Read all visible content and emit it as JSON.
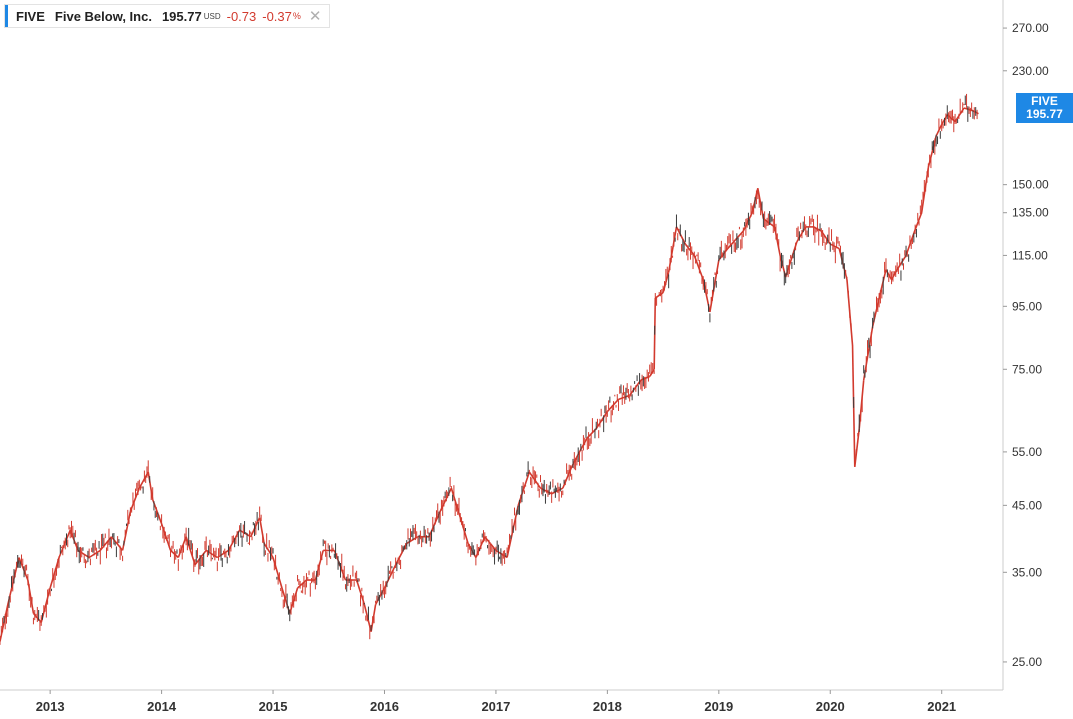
{
  "legend": {
    "symbol": "FIVE",
    "name": "Five Below, Inc.",
    "price": "195.77",
    "currency": "USD",
    "change": "-0.73",
    "change_percent": "-0.37",
    "percent_sign": "%",
    "close_icon": "close-icon",
    "close_glyph": "✕"
  },
  "price_tag": {
    "symbol": "FIVE",
    "price": "195.77"
  },
  "colors": {
    "accent": "#1e88e5",
    "down": "#d23a2e",
    "up": "#3a3a3a",
    "negative_text": "#d23a2e",
    "axis": "#cccccc"
  },
  "chart_data": {
    "type": "line",
    "title": "FIVE Five Below, Inc.",
    "scale": "log",
    "ylim": [
      22.5,
      300
    ],
    "y_ticks": [
      {
        "value": 25,
        "label": "25.00"
      },
      {
        "value": 35,
        "label": "35.00"
      },
      {
        "value": 45,
        "label": "45.00"
      },
      {
        "value": 55,
        "label": "55.00"
      },
      {
        "value": 75,
        "label": "75.00"
      },
      {
        "value": 95,
        "label": "95.00"
      },
      {
        "value": 115,
        "label": "115.00"
      },
      {
        "value": 135,
        "label": "135.00"
      },
      {
        "value": 150,
        "label": "150.00"
      },
      {
        "value": 230,
        "label": "230.00"
      },
      {
        "value": 270,
        "label": "270.00"
      }
    ],
    "xlim": [
      2012.55,
      2021.55
    ],
    "x_ticks": [
      {
        "value": 2013,
        "label": "2013"
      },
      {
        "value": 2014,
        "label": "2014"
      },
      {
        "value": 2015,
        "label": "2015"
      },
      {
        "value": 2016,
        "label": "2016"
      },
      {
        "value": 2017,
        "label": "2017"
      },
      {
        "value": 2018,
        "label": "2018"
      },
      {
        "value": 2019,
        "label": "2019"
      },
      {
        "value": 2020,
        "label": "2020"
      },
      {
        "value": 2021,
        "label": "2021"
      }
    ],
    "series": [
      {
        "name": "FIVE",
        "points": [
          [
            2012.55,
            27
          ],
          [
            2012.62,
            31
          ],
          [
            2012.72,
            37
          ],
          [
            2012.8,
            34
          ],
          [
            2012.85,
            30
          ],
          [
            2012.92,
            29
          ],
          [
            2013.0,
            33
          ],
          [
            2013.08,
            37
          ],
          [
            2013.18,
            41
          ],
          [
            2013.25,
            38
          ],
          [
            2013.35,
            37
          ],
          [
            2013.45,
            38
          ],
          [
            2013.55,
            40
          ],
          [
            2013.65,
            38
          ],
          [
            2013.72,
            44
          ],
          [
            2013.8,
            48
          ],
          [
            2013.88,
            51
          ],
          [
            2013.92,
            46
          ],
          [
            2014.0,
            42
          ],
          [
            2014.08,
            38
          ],
          [
            2014.15,
            37
          ],
          [
            2014.22,
            40
          ],
          [
            2014.3,
            36
          ],
          [
            2014.4,
            38
          ],
          [
            2014.5,
            37
          ],
          [
            2014.6,
            38
          ],
          [
            2014.7,
            41
          ],
          [
            2014.8,
            40
          ],
          [
            2014.88,
            43
          ],
          [
            2014.92,
            39
          ],
          [
            2015.0,
            37
          ],
          [
            2015.08,
            33
          ],
          [
            2015.15,
            30
          ],
          [
            2015.22,
            33
          ],
          [
            2015.3,
            34
          ],
          [
            2015.38,
            34
          ],
          [
            2015.45,
            38
          ],
          [
            2015.55,
            38
          ],
          [
            2015.65,
            34
          ],
          [
            2015.75,
            34
          ],
          [
            2015.82,
            31
          ],
          [
            2015.88,
            28
          ],
          [
            2015.92,
            31
          ],
          [
            2016.0,
            33
          ],
          [
            2016.1,
            36
          ],
          [
            2016.2,
            39
          ],
          [
            2016.3,
            40
          ],
          [
            2016.4,
            40
          ],
          [
            2016.5,
            44
          ],
          [
            2016.6,
            48
          ],
          [
            2016.68,
            43
          ],
          [
            2016.75,
            39
          ],
          [
            2016.82,
            37
          ],
          [
            2016.9,
            40
          ],
          [
            2016.95,
            39
          ],
          [
            2017.0,
            38
          ],
          [
            2017.1,
            37
          ],
          [
            2017.2,
            45
          ],
          [
            2017.3,
            51
          ],
          [
            2017.4,
            48
          ],
          [
            2017.5,
            47
          ],
          [
            2017.6,
            48
          ],
          [
            2017.68,
            52
          ],
          [
            2017.75,
            55
          ],
          [
            2017.82,
            58
          ],
          [
            2017.9,
            60
          ],
          [
            2018.0,
            64
          ],
          [
            2018.1,
            67
          ],
          [
            2018.2,
            68
          ],
          [
            2018.3,
            72
          ],
          [
            2018.38,
            73
          ],
          [
            2018.42,
            75
          ],
          [
            2018.43,
            98
          ],
          [
            2018.5,
            100
          ],
          [
            2018.55,
            108
          ],
          [
            2018.62,
            128
          ],
          [
            2018.7,
            120
          ],
          [
            2018.78,
            115
          ],
          [
            2018.86,
            105
          ],
          [
            2018.92,
            93
          ],
          [
            2019.0,
            113
          ],
          [
            2019.08,
            118
          ],
          [
            2019.15,
            122
          ],
          [
            2019.22,
            126
          ],
          [
            2019.3,
            135
          ],
          [
            2019.35,
            148
          ],
          [
            2019.4,
            132
          ],
          [
            2019.5,
            128
          ],
          [
            2019.55,
            115
          ],
          [
            2019.6,
            106
          ],
          [
            2019.7,
            121
          ],
          [
            2019.78,
            128
          ],
          [
            2019.85,
            128
          ],
          [
            2019.92,
            126
          ],
          [
            2020.0,
            120
          ],
          [
            2020.08,
            118
          ],
          [
            2020.15,
            105
          ],
          [
            2020.2,
            82
          ],
          [
            2020.22,
            52
          ],
          [
            2020.26,
            60
          ],
          [
            2020.3,
            72
          ],
          [
            2020.38,
            88
          ],
          [
            2020.45,
            100
          ],
          [
            2020.5,
            109
          ],
          [
            2020.55,
            105
          ],
          [
            2020.6,
            109
          ],
          [
            2020.68,
            115
          ],
          [
            2020.75,
            125
          ],
          [
            2020.82,
            135
          ],
          [
            2020.88,
            160
          ],
          [
            2020.95,
            180
          ],
          [
            2021.0,
            188
          ],
          [
            2021.05,
            195
          ],
          [
            2021.12,
            190
          ],
          [
            2021.2,
            200
          ],
          [
            2021.28,
            198
          ],
          [
            2021.33,
            195.77
          ]
        ]
      }
    ]
  }
}
